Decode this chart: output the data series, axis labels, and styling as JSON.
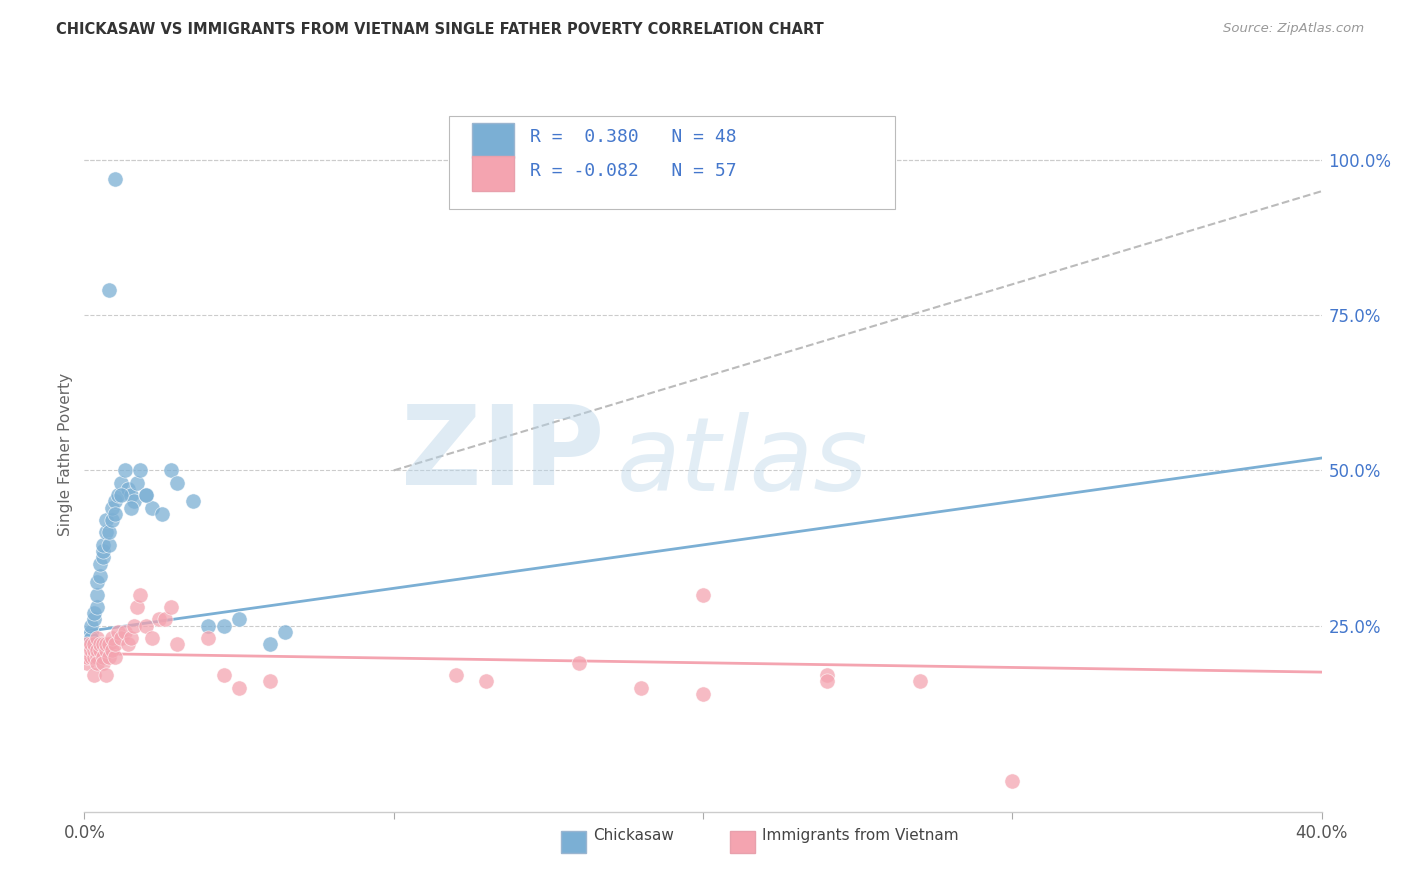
{
  "title": "CHICKASAW VS IMMIGRANTS FROM VIETNAM SINGLE FATHER POVERTY CORRELATION CHART",
  "source": "Source: ZipAtlas.com",
  "ylabel": "Single Father Poverty",
  "right_yticks": [
    "100.0%",
    "75.0%",
    "50.0%",
    "25.0%"
  ],
  "right_ytick_vals": [
    1.0,
    0.75,
    0.5,
    0.25
  ],
  "legend_label_1": "R =  0.380   N = 48",
  "legend_label_2": "R = -0.082   N = 57",
  "legend_group1": "Chickasaw",
  "legend_group2": "Immigrants from Vietnam",
  "color_blue": "#7BAFD4",
  "color_pink": "#F4A4B0",
  "color_blue_text": "#4477CC",
  "color_pink_text": "#4477CC",
  "watermark_zip": "ZIP",
  "watermark_atlas": "atlas",
  "xlim": [
    0.0,
    0.4
  ],
  "ylim": [
    -0.05,
    1.1
  ],
  "blue_scatter_x": [
    0.001,
    0.001,
    0.002,
    0.002,
    0.002,
    0.003,
    0.003,
    0.003,
    0.004,
    0.004,
    0.004,
    0.005,
    0.005,
    0.006,
    0.006,
    0.006,
    0.007,
    0.007,
    0.008,
    0.008,
    0.009,
    0.009,
    0.01,
    0.01,
    0.011,
    0.012,
    0.013,
    0.014,
    0.015,
    0.016,
    0.017,
    0.018,
    0.02,
    0.022,
    0.025,
    0.028,
    0.03,
    0.035,
    0.04,
    0.045,
    0.05,
    0.06,
    0.065,
    0.02,
    0.015,
    0.012,
    0.008,
    0.01
  ],
  "blue_scatter_y": [
    0.22,
    0.23,
    0.24,
    0.23,
    0.25,
    0.26,
    0.27,
    0.22,
    0.28,
    0.3,
    0.32,
    0.33,
    0.35,
    0.36,
    0.37,
    0.38,
    0.4,
    0.42,
    0.38,
    0.4,
    0.42,
    0.44,
    0.45,
    0.43,
    0.46,
    0.48,
    0.5,
    0.47,
    0.46,
    0.45,
    0.48,
    0.5,
    0.46,
    0.44,
    0.43,
    0.5,
    0.48,
    0.45,
    0.25,
    0.25,
    0.26,
    0.22,
    0.24,
    0.46,
    0.44,
    0.46,
    0.79,
    0.97
  ],
  "pink_scatter_x": [
    0.001,
    0.001,
    0.001,
    0.001,
    0.002,
    0.002,
    0.002,
    0.003,
    0.003,
    0.003,
    0.003,
    0.004,
    0.004,
    0.004,
    0.004,
    0.005,
    0.005,
    0.006,
    0.006,
    0.006,
    0.007,
    0.007,
    0.007,
    0.008,
    0.008,
    0.009,
    0.009,
    0.01,
    0.01,
    0.011,
    0.012,
    0.013,
    0.014,
    0.015,
    0.016,
    0.017,
    0.018,
    0.02,
    0.022,
    0.024,
    0.026,
    0.028,
    0.03,
    0.04,
    0.045,
    0.05,
    0.06,
    0.12,
    0.13,
    0.16,
    0.2,
    0.24,
    0.27,
    0.18,
    0.2,
    0.24,
    0.3
  ],
  "pink_scatter_y": [
    0.19,
    0.2,
    0.21,
    0.22,
    0.2,
    0.21,
    0.22,
    0.2,
    0.21,
    0.22,
    0.17,
    0.2,
    0.21,
    0.19,
    0.23,
    0.21,
    0.22,
    0.2,
    0.22,
    0.19,
    0.21,
    0.22,
    0.17,
    0.22,
    0.2,
    0.21,
    0.23,
    0.2,
    0.22,
    0.24,
    0.23,
    0.24,
    0.22,
    0.23,
    0.25,
    0.28,
    0.3,
    0.25,
    0.23,
    0.26,
    0.26,
    0.28,
    0.22,
    0.23,
    0.17,
    0.15,
    0.16,
    0.17,
    0.16,
    0.19,
    0.3,
    0.17,
    0.16,
    0.15,
    0.14,
    0.16,
    0.0
  ],
  "blue_line_x": [
    0.0,
    0.4
  ],
  "blue_line_y": [
    0.24,
    0.52
  ],
  "pink_line_x": [
    0.0,
    0.4
  ],
  "pink_line_y": [
    0.205,
    0.175
  ],
  "dash_line_x": [
    0.1,
    0.4
  ],
  "dash_line_y": [
    0.5,
    0.95
  ],
  "xtick_positions": [
    0.0,
    0.1,
    0.2,
    0.3,
    0.4
  ],
  "background_color": "#FFFFFF",
  "grid_color": "#CCCCCC"
}
